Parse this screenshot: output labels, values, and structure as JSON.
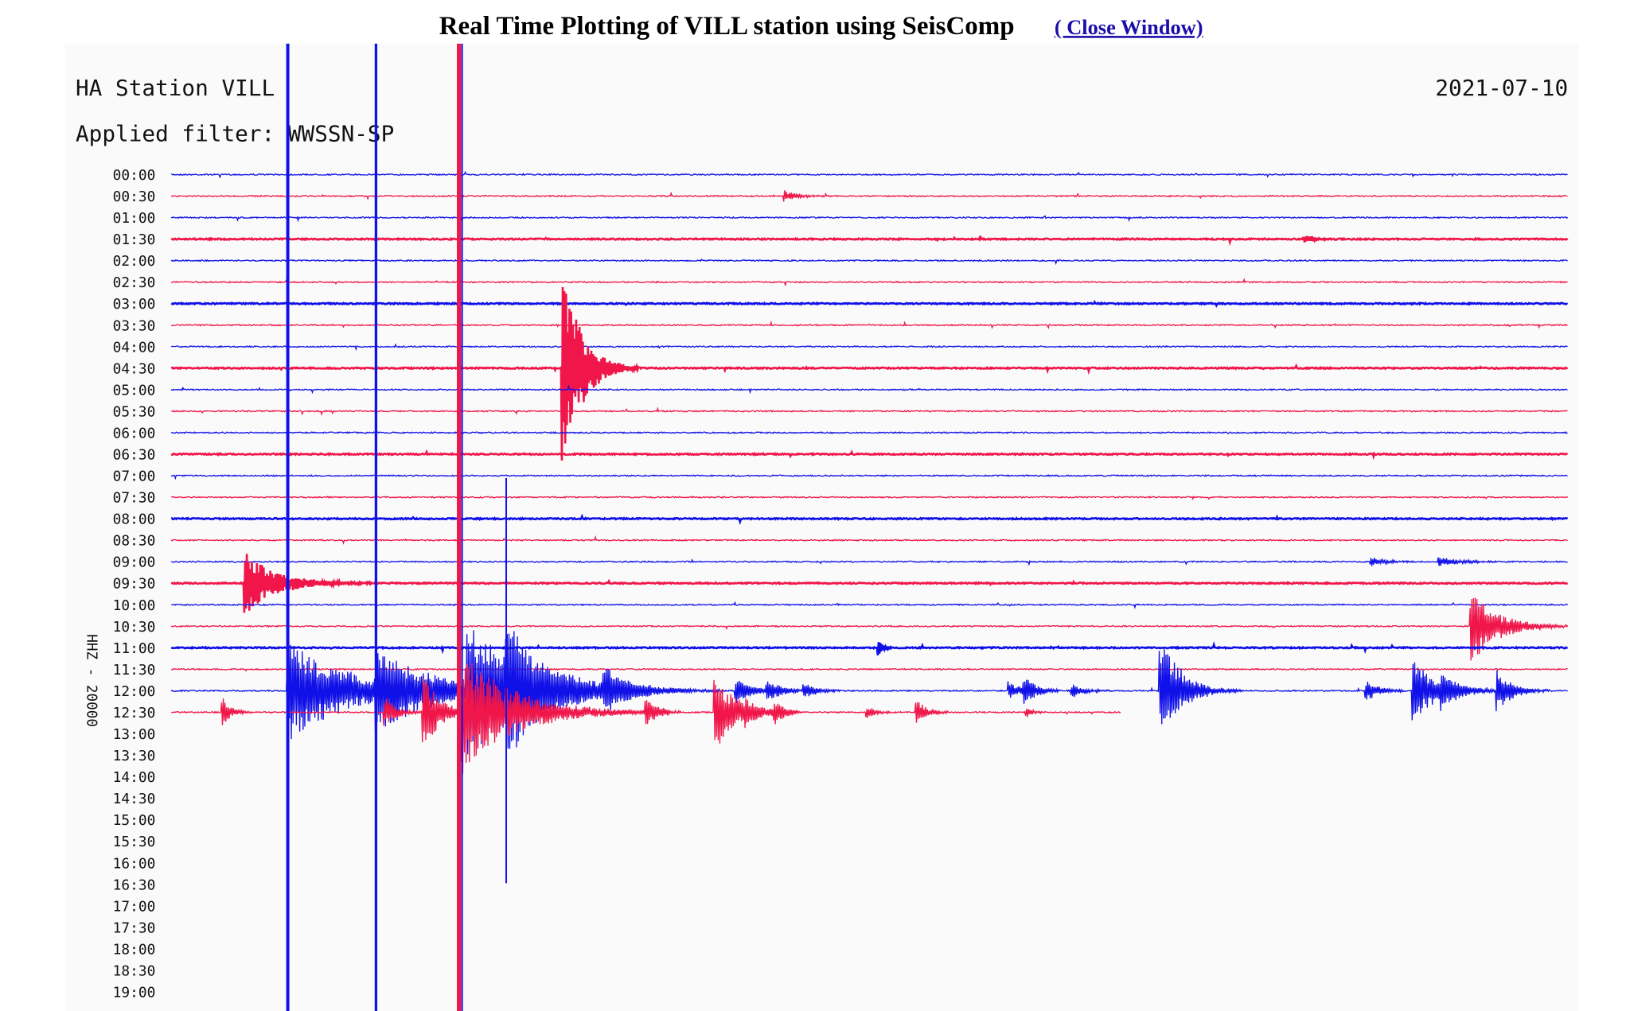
{
  "header": {
    "title": "Real Time Plotting of VILL station using SeisComp",
    "link": "( Close Window)"
  },
  "plot": {
    "station": "HA Station VILL",
    "filter": "Applied filter: WWSSN-SP",
    "date": "2021-07-10",
    "axis_label": "HHZ - 20000",
    "time_labels": [
      "00:00",
      "00:30",
      "01:00",
      "01:30",
      "02:00",
      "02:30",
      "03:00",
      "03:30",
      "04:00",
      "04:30",
      "05:00",
      "05:30",
      "06:00",
      "06:30",
      "07:00",
      "07:30",
      "08:00",
      "08:30",
      "09:00",
      "09:30",
      "10:00",
      "10:30",
      "11:00",
      "11:30",
      "12:00",
      "12:30",
      "13:00",
      "13:30",
      "14:00",
      "14:30",
      "15:00",
      "15:30",
      "16:00",
      "16:30",
      "17:00",
      "17:30",
      "18:00",
      "18:30",
      "19:00"
    ]
  }
}
